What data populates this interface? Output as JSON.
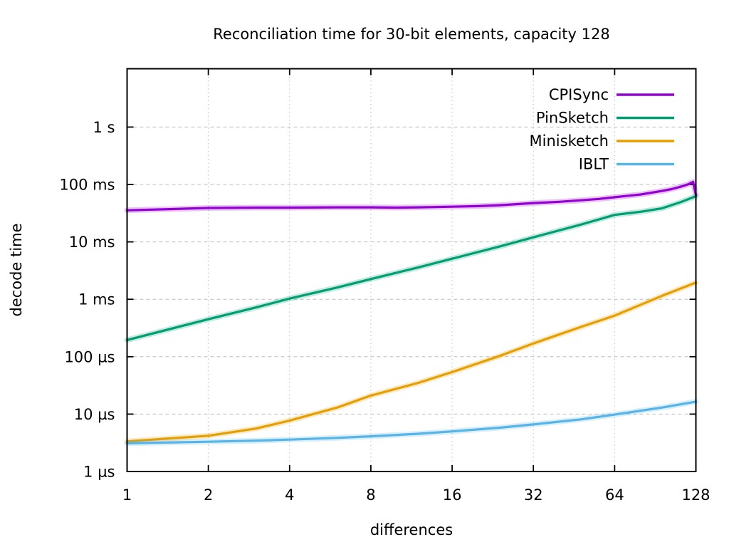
{
  "chart_data": {
    "type": "line",
    "title": "Reconciliation time for 30-bit elements, capacity 128",
    "xlabel": "differences",
    "ylabel": "decode time",
    "x_scale": "log2",
    "y_scale": "log10",
    "x_range": [
      1,
      128
    ],
    "y_range_us": [
      1,
      10000000
    ],
    "grid": true,
    "legend_position": "top-right-inside",
    "x_ticks": [
      {
        "v": 1,
        "label": "1"
      },
      {
        "v": 2,
        "label": "2"
      },
      {
        "v": 4,
        "label": "4"
      },
      {
        "v": 8,
        "label": "8"
      },
      {
        "v": 16,
        "label": "16"
      },
      {
        "v": 32,
        "label": "32"
      },
      {
        "v": 64,
        "label": "64"
      },
      {
        "v": 128,
        "label": "128"
      }
    ],
    "y_ticks": [
      {
        "us": 1000000,
        "label": "1 s"
      },
      {
        "us": 100000,
        "label": "100 ms"
      },
      {
        "us": 10000,
        "label": "10 ms"
      },
      {
        "us": 1000,
        "label": "1 ms"
      },
      {
        "us": 100,
        "label": "100 µs"
      },
      {
        "us": 10,
        "label": "10 µs"
      },
      {
        "us": 1,
        "label": "1 µs"
      }
    ],
    "series": [
      {
        "name": "CPISync",
        "color": "#9400d3",
        "points_x_us": [
          [
            1,
            35500
          ],
          [
            2,
            39000
          ],
          [
            3,
            39500
          ],
          [
            4,
            39500
          ],
          [
            6,
            40000
          ],
          [
            8,
            40000
          ],
          [
            10,
            39500
          ],
          [
            12,
            40000
          ],
          [
            16,
            41000
          ],
          [
            20,
            42000
          ],
          [
            24,
            43500
          ],
          [
            32,
            47500
          ],
          [
            40,
            50000
          ],
          [
            48,
            53000
          ],
          [
            56,
            56000
          ],
          [
            64,
            60000
          ],
          [
            80,
            67000
          ],
          [
            96,
            77000
          ],
          [
            104,
            83000
          ],
          [
            112,
            91000
          ],
          [
            120,
            101000
          ],
          [
            125,
            111000
          ],
          [
            128,
            66000
          ]
        ]
      },
      {
        "name": "PinSketch",
        "color": "#009e73",
        "points_x_us": [
          [
            1,
            195
          ],
          [
            2,
            450
          ],
          [
            3,
            720
          ],
          [
            4,
            1030
          ],
          [
            6,
            1600
          ],
          [
            8,
            2250
          ],
          [
            12,
            3600
          ],
          [
            16,
            5100
          ],
          [
            24,
            8300
          ],
          [
            32,
            12000
          ],
          [
            48,
            20000
          ],
          [
            64,
            29500
          ],
          [
            80,
            33500
          ],
          [
            96,
            38500
          ],
          [
            112,
            49000
          ],
          [
            128,
            62500
          ]
        ]
      },
      {
        "name": "Minisketch",
        "color": "#e69f00",
        "points_x_us": [
          [
            1,
            3.35
          ],
          [
            2,
            4.2
          ],
          [
            3,
            5.6
          ],
          [
            4,
            7.7
          ],
          [
            6,
            13
          ],
          [
            8,
            21
          ],
          [
            12,
            35
          ],
          [
            16,
            54
          ],
          [
            24,
            103
          ],
          [
            32,
            170
          ],
          [
            48,
            330
          ],
          [
            64,
            520
          ],
          [
            96,
            1150
          ],
          [
            128,
            1950
          ]
        ]
      },
      {
        "name": "IBLT",
        "color": "#56b4e9",
        "points_x_us": [
          [
            1,
            3.1
          ],
          [
            2,
            3.3
          ],
          [
            3,
            3.45
          ],
          [
            4,
            3.6
          ],
          [
            6,
            3.85
          ],
          [
            8,
            4.1
          ],
          [
            12,
            4.55
          ],
          [
            16,
            5.0
          ],
          [
            24,
            5.8
          ],
          [
            32,
            6.6
          ],
          [
            48,
            8.1
          ],
          [
            64,
            9.8
          ],
          [
            96,
            13
          ],
          [
            128,
            16.5
          ]
        ]
      }
    ]
  }
}
